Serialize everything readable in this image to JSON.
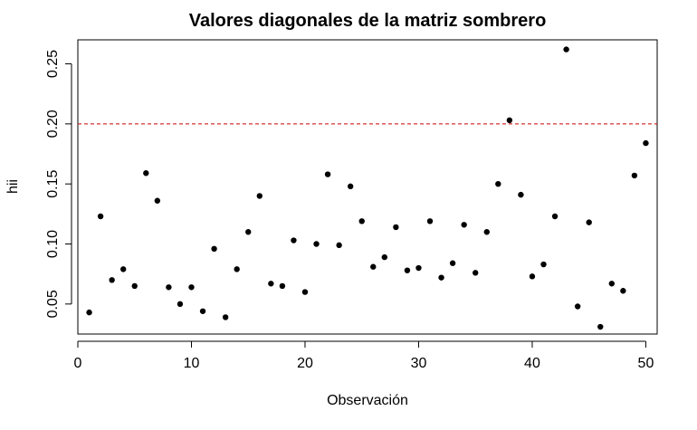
{
  "chart_data": {
    "type": "scatter",
    "title": "Valores diagonales de la matriz sombrero",
    "xlabel": "Observación",
    "ylabel": "hii",
    "xlim": [
      0,
      51
    ],
    "ylim": [
      0.025,
      0.27
    ],
    "x_ticks": [
      0,
      10,
      20,
      30,
      40,
      50
    ],
    "y_ticks": [
      0.05,
      0.1,
      0.15,
      0.2,
      0.25
    ],
    "x_tick_labels": [
      "0",
      "10",
      "20",
      "30",
      "40",
      "50"
    ],
    "y_tick_labels": [
      "0.05",
      "0.10",
      "0.15",
      "0.20",
      "0.25"
    ],
    "grid": false,
    "legend": "none",
    "point_color": "#000000",
    "reference_line": {
      "y": 0.2,
      "style": "dashed",
      "color": "#cc0000"
    },
    "series": [
      {
        "x": [
          1,
          2,
          3,
          4,
          5,
          6,
          7,
          8,
          9,
          10,
          11,
          12,
          13,
          14,
          15,
          16,
          17,
          18,
          19,
          20,
          21,
          22,
          23,
          24,
          25,
          26,
          27,
          28,
          29,
          30,
          31,
          32,
          33,
          34,
          35,
          36,
          37,
          38,
          39,
          40,
          41,
          42,
          43,
          44,
          45,
          46,
          47,
          48,
          49,
          50
        ],
        "y": [
          0.043,
          0.123,
          0.07,
          0.079,
          0.065,
          0.159,
          0.136,
          0.064,
          0.05,
          0.064,
          0.044,
          0.096,
          0.039,
          0.079,
          0.11,
          0.14,
          0.067,
          0.065,
          0.103,
          0.06,
          0.1,
          0.158,
          0.099,
          0.148,
          0.119,
          0.081,
          0.089,
          0.114,
          0.078,
          0.08,
          0.119,
          0.072,
          0.084,
          0.116,
          0.076,
          0.11,
          0.15,
          0.203,
          0.141,
          0.073,
          0.083,
          0.123,
          0.262,
          0.048,
          0.118,
          0.031,
          0.067,
          0.061,
          0.157,
          0.184
        ]
      }
    ]
  }
}
